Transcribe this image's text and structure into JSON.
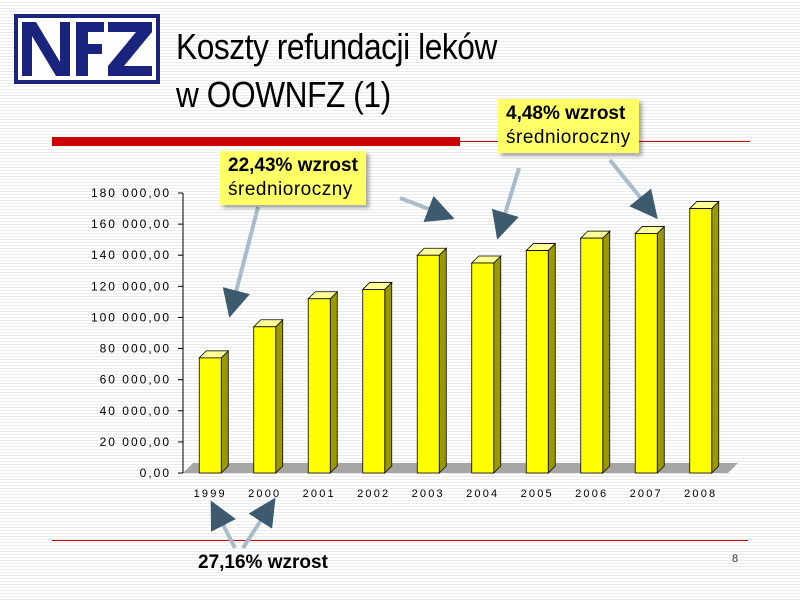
{
  "slide": {
    "title_line1": "Koszty refundacji leków",
    "title_line2": "w OOWNFZ (1)",
    "page_number": "8",
    "logo_text": "NFZ"
  },
  "callouts": {
    "c1_line1": "22,43% wzrost",
    "c1_line2": "średnioroczny",
    "c2_line1": "4,48% wzrost",
    "c2_line2": "średnioroczny",
    "c3_text": "27,16% wzrost"
  },
  "colors": {
    "bar_front": "#ffff00",
    "bar_side": "#9a9a00",
    "bar_top": "#ffff99",
    "accent_red": "#cc0000",
    "logo_blue": "#1a237e",
    "callout_fill": "#ffff66"
  },
  "chart_data": {
    "type": "bar",
    "categories": [
      "1999",
      "2000",
      "2001",
      "2002",
      "2003",
      "2004",
      "2005",
      "2006",
      "2007",
      "2008"
    ],
    "values": [
      74000,
      94000,
      112000,
      118000,
      140000,
      135000,
      143000,
      151000,
      154000,
      170000
    ],
    "y_tick_labels": [
      "0,00",
      "20 000,00",
      "40 000,00",
      "60 000,00",
      "80 000,00",
      "100 000,00",
      "120 000,00",
      "140 000,00",
      "160 000,00",
      "180 000,00"
    ],
    "ylim": [
      0,
      180000
    ],
    "grid": false,
    "legend": "none"
  }
}
